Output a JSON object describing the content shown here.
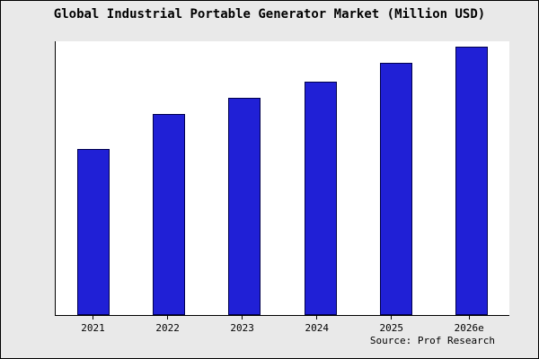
{
  "title": "Global Industrial Portable Generator Market (Million USD)",
  "source": "Source: Prof Research",
  "colors": {
    "figure_background": "#e9e9e9",
    "plot_background": "#ffffff",
    "axis": "#000000",
    "bar_fill": "#2020d6",
    "bar_edge": "#00004d",
    "text": "#000000"
  },
  "chart_data": {
    "type": "bar",
    "title": "Global Industrial Portable Generator Market (Million USD)",
    "categories": [
      "2021",
      "2022",
      "2023",
      "2024",
      "2025",
      "2026e"
    ],
    "values": [
      62,
      75,
      81,
      87,
      94,
      100
    ],
    "xlabel": "",
    "ylabel": "",
    "ylim": [
      0,
      102
    ],
    "grid": false,
    "legend": false,
    "bar_color": "#2020d6",
    "bar_edge_color": "#00004d"
  }
}
